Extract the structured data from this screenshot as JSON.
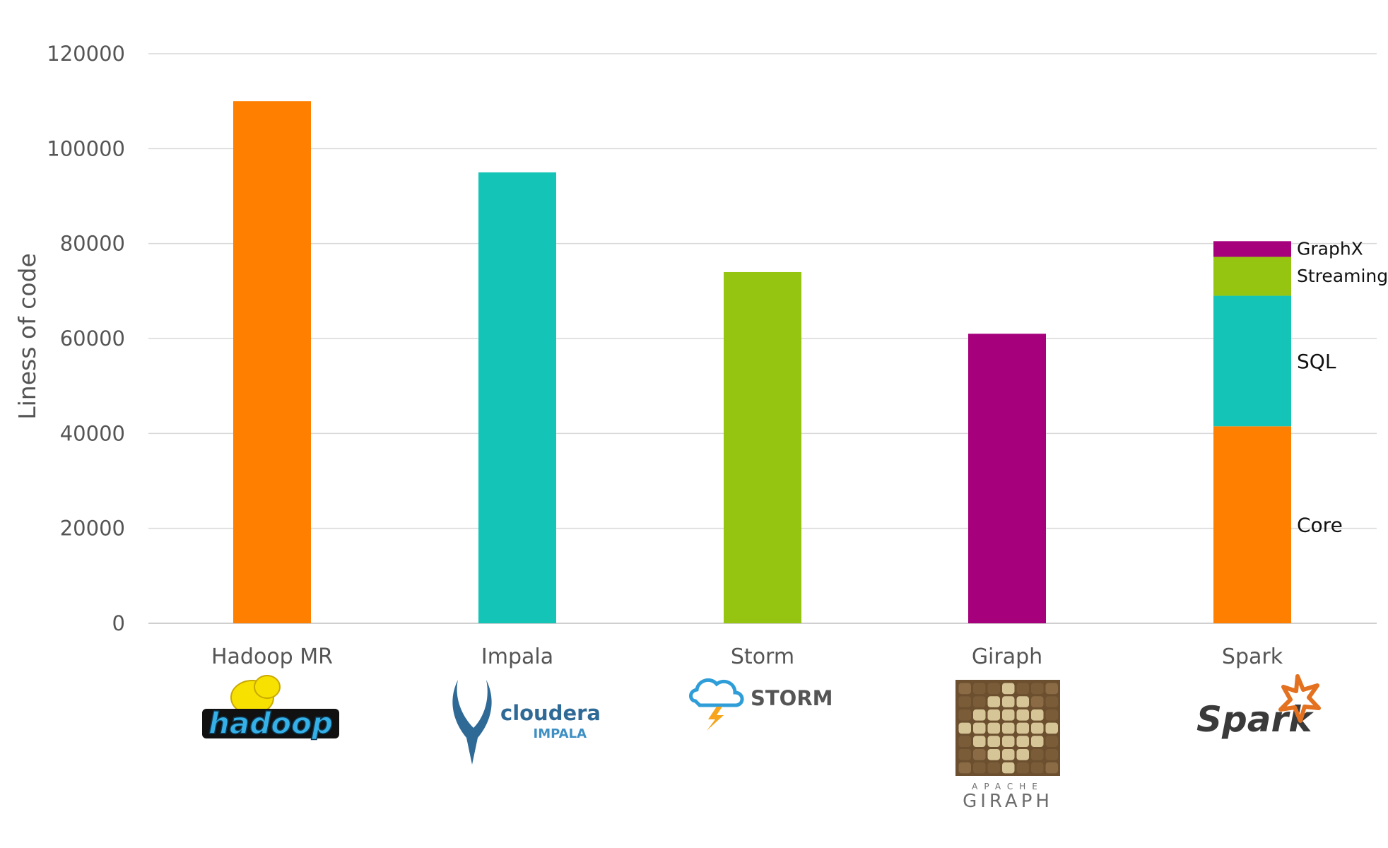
{
  "chart_data": {
    "type": "bar",
    "ylabel": "Liness of code",
    "xlabel": "",
    "title": "",
    "ylim": [
      0,
      120000
    ],
    "yticks": [
      0,
      20000,
      40000,
      60000,
      80000,
      100000,
      120000
    ],
    "grid": true,
    "legend": "none",
    "categories": [
      "Hadoop MR",
      "Impala",
      "Storm",
      "Giraph",
      "Spark"
    ],
    "bars": [
      {
        "category": "Hadoop MR",
        "segments": [
          {
            "label": "",
            "value": 110000,
            "color": "#ff8000"
          }
        ]
      },
      {
        "category": "Impala",
        "segments": [
          {
            "label": "",
            "value": 95000,
            "color": "#13c4b7"
          }
        ]
      },
      {
        "category": "Storm",
        "segments": [
          {
            "label": "",
            "value": 74000,
            "color": "#95c511"
          }
        ]
      },
      {
        "category": "Giraph",
        "segments": [
          {
            "label": "",
            "value": 61000,
            "color": "#a6007c"
          }
        ]
      },
      {
        "category": "Spark",
        "segments": [
          {
            "label": "Core",
            "value": 41500,
            "color": "#ff8000"
          },
          {
            "label": "SQL",
            "value": 27500,
            "color": "#13c4b7"
          },
          {
            "label": "Streaming",
            "value": 8200,
            "color": "#95c511"
          },
          {
            "label": "GraphX",
            "value": 3300,
            "color": "#a6007c"
          }
        ]
      }
    ]
  },
  "logos": {
    "hadoop": {
      "text": "hadoop",
      "color": "#36b1e8",
      "accent": "#f6e100"
    },
    "impala": {
      "brand": "cloudera",
      "product": "IMPALA",
      "color": "#2f6a96",
      "accent": "#3d8fc4"
    },
    "storm": {
      "text": "STORM",
      "color": "#555555",
      "accent": "#2f9ed8",
      "bolt": "#f7a31c"
    },
    "giraph": {
      "top": "APACHE",
      "bottom": "GIRAPH",
      "color": "#6d6d6d",
      "dark": "#6b4f2f",
      "light": "#d6c597"
    },
    "spark": {
      "text": "Spark",
      "color": "#3a3a3a",
      "accent": "#e3711f"
    }
  }
}
